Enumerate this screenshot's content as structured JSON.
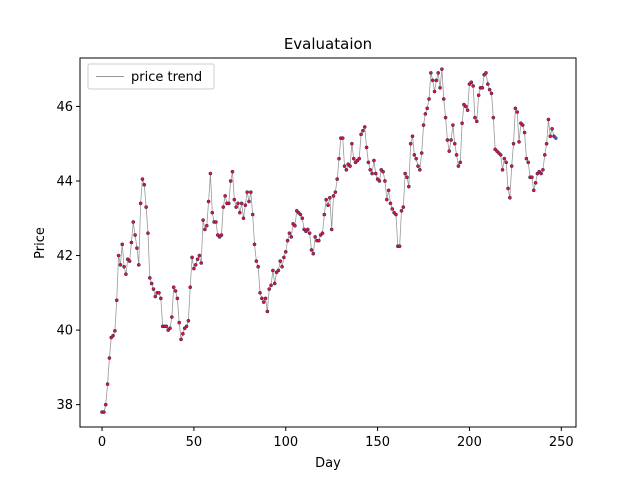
{
  "chart_data": {
    "type": "line",
    "title": "Evaluataion",
    "xlabel": "Day",
    "ylabel": "Price",
    "xlim": [
      -12,
      258
    ],
    "ylim": [
      37.4,
      47.3
    ],
    "xticks": [
      0,
      50,
      100,
      150,
      200,
      250
    ],
    "yticks": [
      38,
      40,
      42,
      44,
      46
    ],
    "grid": false,
    "legend": {
      "position": "top-left",
      "entries": [
        "price trend"
      ]
    },
    "colors": {
      "line": "#999999",
      "marker": "#dc143c",
      "marker_edge": "#2a2a5a",
      "last_marker": "#3355cc"
    },
    "series": [
      {
        "name": "price trend",
        "values": [
          37.8,
          37.8,
          38.0,
          38.55,
          39.25,
          39.8,
          39.85,
          39.98,
          40.8,
          42.0,
          41.75,
          42.3,
          41.7,
          41.5,
          41.9,
          41.85,
          42.35,
          42.9,
          42.55,
          42.2,
          41.75,
          43.4,
          44.05,
          43.9,
          43.3,
          42.6,
          41.4,
          41.25,
          41.1,
          40.9,
          41.0,
          41.0,
          40.85,
          40.1,
          40.1,
          40.1,
          40.0,
          40.05,
          40.35,
          41.15,
          41.05,
          40.85,
          40.2,
          39.75,
          39.9,
          40.05,
          40.1,
          40.25,
          41.15,
          41.95,
          41.65,
          41.75,
          41.9,
          42.0,
          41.8,
          42.95,
          42.7,
          42.8,
          43.45,
          44.2,
          43.15,
          42.9,
          42.9,
          42.55,
          42.5,
          42.55,
          43.3,
          43.6,
          43.4,
          43.4,
          44.0,
          44.25,
          43.5,
          43.3,
          43.4,
          43.15,
          43.4,
          43.0,
          43.35,
          43.7,
          43.45,
          43.7,
          43.1,
          42.3,
          41.85,
          41.7,
          41.0,
          40.85,
          40.75,
          40.85,
          40.5,
          41.1,
          41.2,
          41.6,
          41.25,
          41.55,
          41.6,
          41.85,
          41.7,
          41.95,
          42.1,
          42.4,
          42.6,
          42.5,
          42.85,
          42.8,
          43.2,
          43.15,
          43.1,
          43.0,
          42.7,
          42.65,
          42.7,
          42.6,
          42.15,
          42.05,
          42.5,
          42.4,
          42.4,
          42.55,
          42.6,
          43.1,
          43.5,
          43.35,
          43.55,
          42.7,
          43.6,
          43.7,
          44.05,
          44.6,
          45.15,
          45.15,
          44.4,
          44.3,
          44.45,
          44.4,
          45.0,
          44.6,
          44.5,
          44.55,
          44.6,
          45.25,
          45.35,
          45.45,
          44.9,
          44.5,
          44.3,
          44.2,
          44.55,
          44.2,
          44.05,
          44.0,
          44.3,
          44.25,
          44.0,
          43.5,
          43.75,
          43.4,
          43.25,
          43.15,
          43.1,
          42.25,
          42.25,
          43.2,
          43.3,
          44.2,
          44.1,
          43.85,
          45.0,
          45.2,
          44.7,
          44.6,
          44.4,
          44.3,
          44.75,
          45.5,
          45.8,
          45.95,
          46.2,
          46.9,
          46.7,
          46.4,
          46.7,
          46.9,
          46.5,
          47.0,
          46.2,
          45.7,
          45.1,
          44.8,
          45.1,
          45.5,
          45.0,
          44.7,
          44.4,
          44.5,
          45.55,
          46.05,
          46.0,
          45.9,
          46.6,
          46.65,
          46.55,
          45.7,
          45.6,
          46.3,
          46.5,
          46.5,
          46.85,
          46.9,
          46.6,
          46.45,
          46.35,
          45.7,
          44.85,
          44.8,
          44.75,
          44.7,
          44.3,
          44.6,
          44.5,
          43.8,
          43.55,
          44.4,
          45.0,
          45.95,
          45.85,
          45.05,
          45.55,
          45.5,
          45.3,
          44.6,
          44.5,
          44.1,
          44.1,
          43.75,
          43.95,
          44.2,
          44.25,
          44.2,
          44.3,
          44.7,
          45.0,
          45.65,
          45.2,
          45.4,
          45.2,
          45.15
        ]
      }
    ]
  }
}
